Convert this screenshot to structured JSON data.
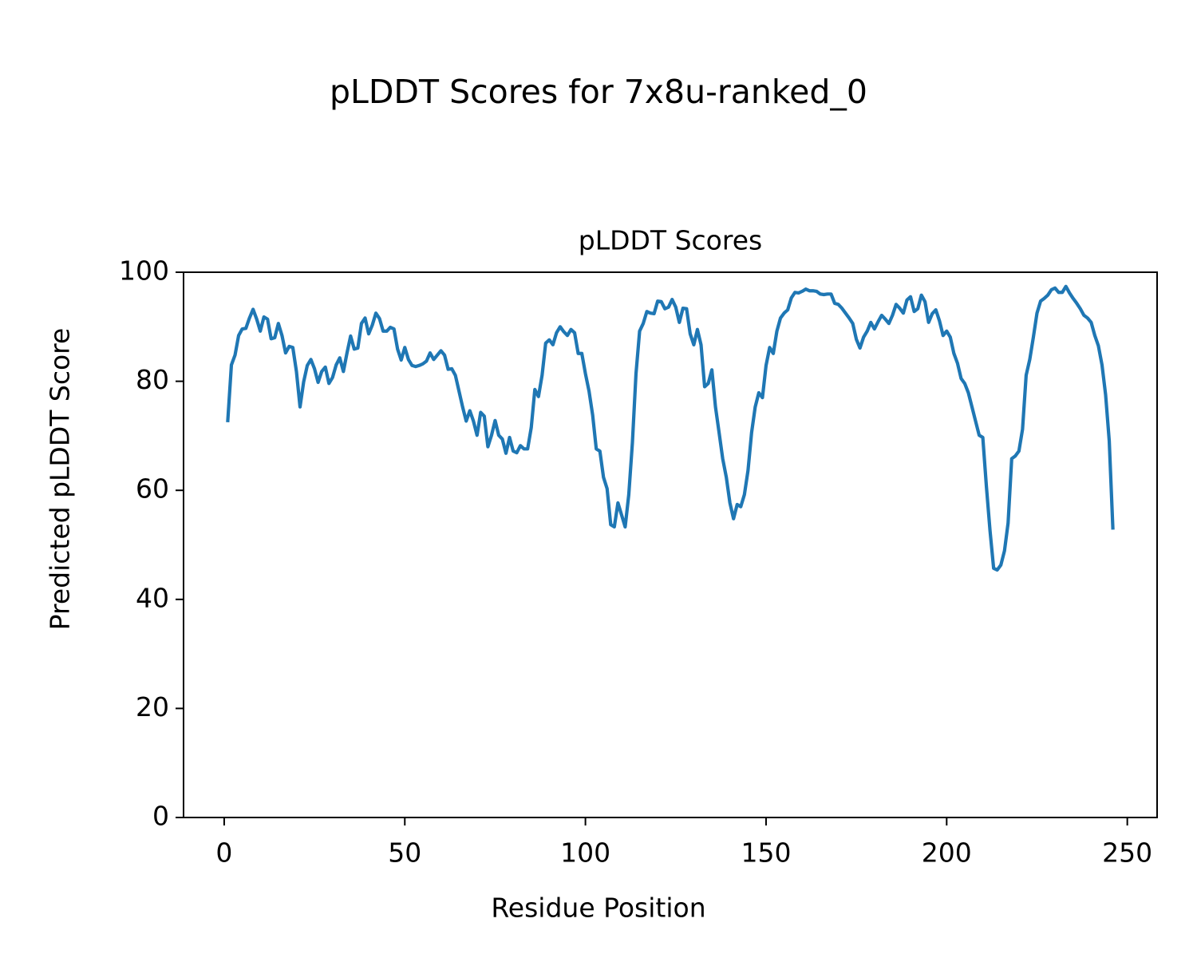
{
  "chart_data": {
    "type": "line",
    "title": "pLDDT Scores for 7x8u-ranked_0",
    "subtitle": "pLDDT Scores",
    "x_label": "Residue Position",
    "y_label": "Predicted pLDDT Score",
    "color": "#1f77b4",
    "xlim": [
      -11.25,
      258.25
    ],
    "ylim": [
      0,
      100
    ],
    "xticks": [
      0,
      50,
      100,
      150,
      200,
      250
    ],
    "yticks": [
      0,
      20,
      40,
      60,
      80,
      100
    ],
    "x": [
      1,
      2,
      3,
      4,
      5,
      6,
      7,
      8,
      9,
      10,
      11,
      12,
      13,
      14,
      15,
      16,
      17,
      18,
      19,
      20,
      21,
      22,
      23,
      24,
      25,
      26,
      27,
      28,
      29,
      30,
      31,
      32,
      33,
      34,
      35,
      36,
      37,
      38,
      39,
      40,
      41,
      42,
      43,
      44,
      45,
      46,
      47,
      48,
      49,
      50,
      51,
      52,
      53,
      54,
      55,
      56,
      57,
      58,
      59,
      60,
      61,
      62,
      63,
      64,
      65,
      66,
      67,
      68,
      69,
      70,
      71,
      72,
      73,
      74,
      75,
      76,
      77,
      78,
      79,
      80,
      81,
      82,
      83,
      84,
      85,
      86,
      87,
      88,
      89,
      90,
      91,
      92,
      93,
      94,
      95,
      96,
      97,
      98,
      99,
      100,
      101,
      102,
      103,
      104,
      105,
      106,
      107,
      108,
      109,
      110,
      111,
      112,
      113,
      114,
      115,
      116,
      117,
      118,
      119,
      120,
      121,
      122,
      123,
      124,
      125,
      126,
      127,
      128,
      129,
      130,
      131,
      132,
      133,
      134,
      135,
      136,
      137,
      138,
      139,
      140,
      141,
      142,
      143,
      144,
      145,
      146,
      147,
      148,
      149,
      150,
      151,
      152,
      153,
      154,
      155,
      156,
      157,
      158,
      159,
      160,
      161,
      162,
      163,
      164,
      165,
      166,
      167,
      168,
      169,
      170,
      171,
      172,
      173,
      174,
      175,
      176,
      177,
      178,
      179,
      180,
      181,
      182,
      183,
      184,
      185,
      186,
      187,
      188,
      189,
      190,
      191,
      192,
      193,
      194,
      195,
      196,
      197,
      198,
      199,
      200,
      201,
      202,
      203,
      204,
      205,
      206,
      207,
      208,
      209,
      210,
      211,
      212,
      213,
      214,
      215,
      216,
      217,
      218,
      219,
      220,
      221,
      222,
      223,
      224,
      225,
      226,
      227,
      228,
      229,
      230,
      231,
      232,
      233,
      234,
      235,
      236,
      237,
      238,
      239,
      240,
      241,
      242,
      243,
      244,
      245,
      246
    ],
    "values": [
      72.8,
      83,
      84.8,
      88.4,
      89.6,
      89.7,
      91.6,
      93.2,
      91.4,
      89.2,
      91.8,
      91.4,
      87.8,
      88,
      90.6,
      88.4,
      85.2,
      86.4,
      86.2,
      81.8,
      75.3,
      79.9,
      82.9,
      84,
      82.3,
      79.8,
      81.8,
      82.6,
      79.6,
      80.7,
      83,
      84.3,
      81.8,
      85.2,
      88.3,
      85.9,
      86.1,
      90.6,
      91.6,
      88.7,
      90.3,
      92.5,
      91.5,
      89.2,
      89.2,
      89.9,
      89.6,
      85.9,
      83.9,
      86.2,
      84,
      82.9,
      82.7,
      82.9,
      83.2,
      83.7,
      85.2,
      84,
      84.8,
      85.6,
      84.8,
      82.2,
      82.3,
      81.1,
      78.2,
      75.3,
      72.7,
      74.6,
      72.7,
      70.1,
      74.3,
      73.6,
      68,
      70.1,
      72.8,
      70.1,
      69.4,
      66.8,
      69.7,
      67.2,
      66.9,
      68.2,
      67.6,
      67.6,
      71.5,
      78.5,
      77.2,
      81.1,
      87,
      87.6,
      86.7,
      88.9,
      90,
      89.1,
      88.4,
      89.5,
      88.9,
      85.1,
      85.1,
      81.4,
      78.2,
      73.8,
      67.6,
      67.2,
      62.4,
      60.3,
      53.7,
      53.3,
      57.7,
      55.5,
      53.3,
      59.2,
      68.7,
      81.4,
      89.2,
      90.6,
      92.8,
      92.5,
      92.4,
      94.7,
      94.6,
      93.3,
      93.6,
      95,
      93.6,
      90.8,
      93.4,
      93.3,
      88.7,
      86.7,
      89.5,
      86.7,
      79,
      79.6,
      82.1,
      75.3,
      70.6,
      65.8,
      62.4,
      57.7,
      54.8,
      57.4,
      57,
      59.2,
      63.6,
      70.6,
      75.3,
      77.9,
      77,
      82.9,
      86.2,
      85.1,
      89.2,
      91.6,
      92.5,
      93.1,
      95.3,
      96.3,
      96.2,
      96.5,
      96.9,
      96.6,
      96.6,
      96.5,
      96,
      95.9,
      96,
      96,
      94.3,
      94.1,
      93.4,
      92.5,
      91.6,
      90.6,
      87.7,
      86.1,
      88.1,
      89.2,
      90.8,
      89.6,
      90.9,
      92.1,
      91.4,
      90.6,
      92.1,
      94.1,
      93.4,
      92.5,
      94.9,
      95.5,
      92.8,
      93.3,
      95.8,
      94.6,
      90.8,
      92.4,
      93.1,
      91.1,
      88.4,
      89.2,
      88.1,
      85.1,
      83.3,
      80.5,
      79.6,
      77.9,
      75.3,
      72.7,
      70.1,
      69.7,
      60.7,
      52.6,
      45.7,
      45.4,
      46.3,
      48.9,
      54,
      65.8,
      66.3,
      67.2,
      71.2,
      81.1,
      84,
      88.1,
      92.5,
      94.7,
      95.2,
      95.8,
      96.8,
      97.1,
      96.3,
      96.3,
      97.4,
      96.2,
      95.2,
      94.3,
      93.3,
      92.1,
      91.6,
      90.8,
      88.4,
      86.5,
      83,
      77.5,
      69.1,
      53.1
    ]
  }
}
